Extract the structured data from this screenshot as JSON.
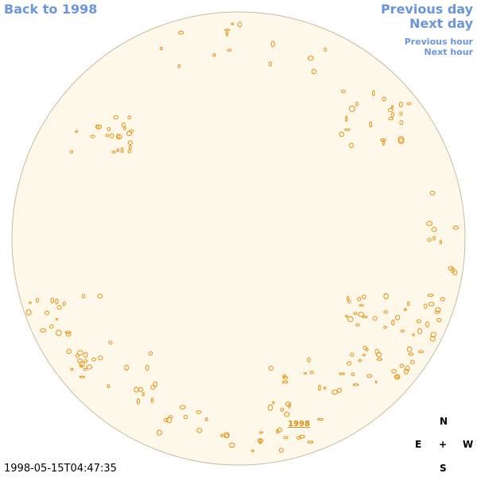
{
  "navigation": {
    "back": "Back to 1998",
    "previous_day": "Previous day",
    "next_day": "Next day",
    "previous_hour": "Previous hour",
    "next_hour": "Next hour"
  },
  "disk_label": "1998",
  "timestamp": "1998-05-15T04:47:35",
  "compass": {
    "north": "N",
    "east": "E",
    "center": "+",
    "west": "W",
    "south": "S"
  }
}
